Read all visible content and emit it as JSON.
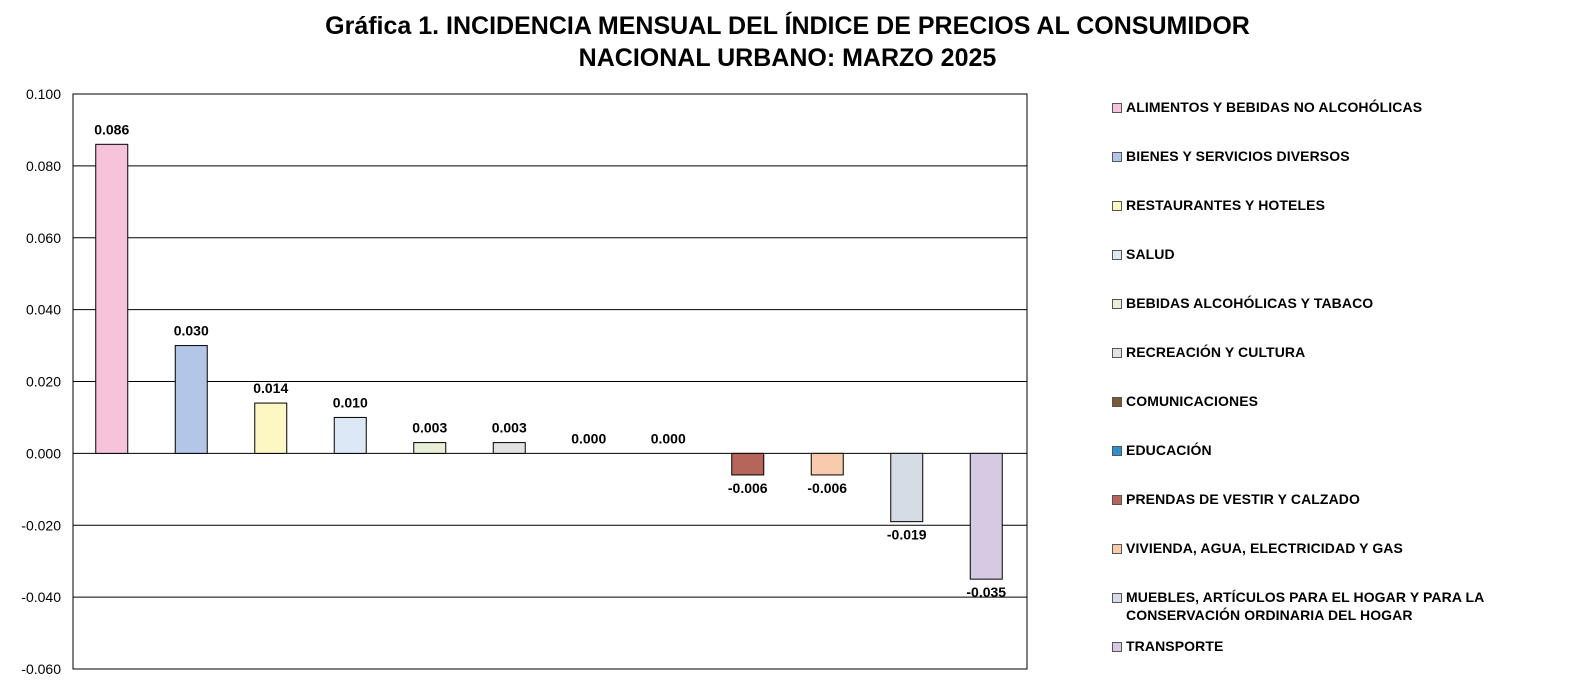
{
  "chart_data": {
    "type": "bar",
    "title_line1": "Gráfica 1. INCIDENCIA MENSUAL  DEL ÍNDICE DE PRECIOS AL CONSUMIDOR",
    "title_line2": "NACIONAL URBANO: MARZO 2025",
    "ylim": [
      -0.06,
      0.1
    ],
    "yticks": [
      "0.100",
      "0.080",
      "0.060",
      "0.040",
      "0.020",
      "0.000",
      "-0.020",
      "-0.040",
      "-0.060"
    ],
    "grid": true,
    "legend_position": "right",
    "categories": [
      "ALIMENTOS Y BEBIDAS NO ALCOHÓLICAS",
      "BIENES Y SERVICIOS DIVERSOS",
      "RESTAURANTES Y HOTELES",
      "SALUD",
      "BEBIDAS ALCOHÓLICAS Y TABACO",
      "RECREACIÓN Y CULTURA",
      "COMUNICACIONES",
      "EDUCACIÓN",
      "PRENDAS DE VESTIR Y CALZADO",
      "VIVIENDA, AGUA, ELECTRICIDAD Y GAS",
      "MUEBLES, ARTÍCULOS PARA EL HOGAR Y PARA LA CONSERVACIÓN ORDINARIA DEL HOGAR",
      "TRANSPORTE"
    ],
    "values": [
      0.086,
      0.03,
      0.014,
      0.01,
      0.003,
      0.003,
      0.0,
      0.0,
      -0.006,
      -0.006,
      -0.019,
      -0.035
    ],
    "value_labels": [
      "0.086",
      "0.030",
      "0.014",
      "0.010",
      "0.003",
      "0.003",
      "0.000",
      "0.000",
      "-0.006",
      "-0.006",
      "-0.019",
      "-0.035"
    ],
    "colors": [
      "#f7c3dc",
      "#b4c6e7",
      "#fdf7c3",
      "#dde8f6",
      "#e8eed8",
      "#e2e2e2",
      "#7a5a32",
      "#2e8fcf",
      "#b5655a",
      "#f8cbad",
      "#d6dce5",
      "#d5c9e3"
    ]
  }
}
